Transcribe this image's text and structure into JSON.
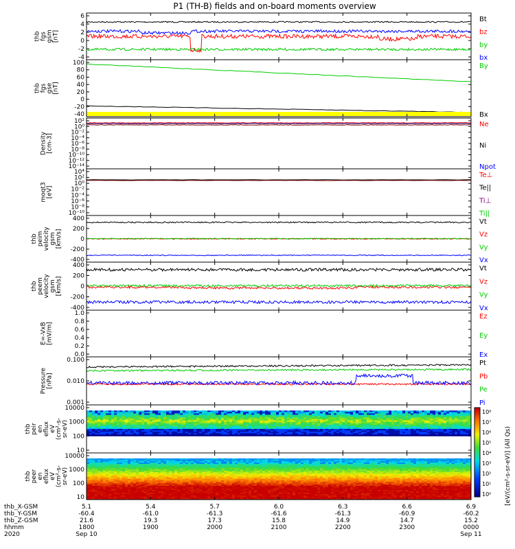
{
  "title": "P1  (TH-B) fields and on-board moments overview",
  "chart_data": [
    {
      "type": "line",
      "ylabel": [
        "thb",
        "fgs",
        "gsm",
        "[nT]"
      ],
      "yticks": [
        "6",
        "4",
        "2",
        "0",
        "-2",
        "-4"
      ],
      "ylim": [
        -5,
        7
      ],
      "series": [
        {
          "name": "Bt",
          "color": "#000000",
          "level": 5.2,
          "noise": 0.3
        },
        {
          "name": "bz",
          "color": "#ff0000",
          "level": 1.0,
          "noise": 1.0
        },
        {
          "name": "by",
          "color": "#00cc00",
          "level": -2.8,
          "noise": 0.6
        },
        {
          "name": "bx",
          "color": "#0000ff",
          "level": 2.5,
          "noise": 0.7
        }
      ]
    },
    {
      "type": "line",
      "ylabel": [
        "thb",
        "fgs",
        "gse",
        "[nT]"
      ],
      "yticks": [
        "100",
        "80",
        "60",
        "40",
        "20",
        "0",
        "-20",
        "-40"
      ],
      "ylim": [
        -55,
        105
      ],
      "series": [
        {
          "name": "By",
          "color": "#00cc00",
          "start": 100,
          "end": 45
        },
        {
          "name": "Bx",
          "color": "#000000",
          "start": -30,
          "end": -50
        }
      ]
    },
    {
      "type": "line",
      "ylabel": [
        "Density",
        "[cm-3]"
      ],
      "yticks": [
        "10²",
        "10⁰",
        "10⁻²",
        "10⁻⁴",
        "10⁻⁶",
        "10⁻⁸",
        "10⁻¹⁰",
        "10⁻¹²",
        "10⁻¹⁴"
      ],
      "series": [
        {
          "name": "Ne",
          "color": "#ff0000"
        },
        {
          "name": "Ni",
          "color": "#000000"
        },
        {
          "name": "Npot",
          "color": "#0000ff"
        }
      ]
    },
    {
      "type": "line",
      "ylabel": [
        "moqt3",
        "[eV]"
      ],
      "yticks": [
        "10⁴",
        "10²",
        "10⁰",
        "10⁻²",
        "10⁻⁴",
        "10⁻⁶",
        "10⁻⁸",
        "10⁻¹⁰"
      ],
      "series": [
        {
          "name": "Te⊥",
          "color": "#ff0000"
        },
        {
          "name": "Te||",
          "color": "#000000"
        },
        {
          "name": "Ti⊥",
          "color": "#800080"
        },
        {
          "name": "Ti||",
          "color": "#00cc00"
        }
      ]
    },
    {
      "type": "line",
      "ylabel": [
        "thb",
        "peim",
        "velocity",
        "gsm",
        "[km/s]"
      ],
      "yticks": [
        "400",
        "200",
        "0",
        "-200",
        "-400"
      ],
      "ylim": [
        -400,
        400
      ],
      "series": [
        {
          "name": "Vt",
          "color": "#000000",
          "level": 320,
          "noise": 8
        },
        {
          "name": "Vz",
          "color": "#ff0000",
          "level": 0,
          "noise": 6
        },
        {
          "name": "Vy",
          "color": "#00cc00",
          "level": 5,
          "noise": 6
        },
        {
          "name": "Vx",
          "color": "#0000ff",
          "level": -320,
          "noise": 6
        }
      ]
    },
    {
      "type": "line",
      "ylabel": [
        "thb",
        "peem",
        "velocity",
        "gsm",
        "[km/s]"
      ],
      "yticks": [
        "400",
        "200",
        "0",
        "-200",
        "-400"
      ],
      "ylim": [
        -400,
        400
      ],
      "series": [
        {
          "name": "Vt",
          "color": "#000000",
          "level": 310,
          "noise": 18
        },
        {
          "name": "Vz",
          "color": "#ff0000",
          "level": -20,
          "noise": 14
        },
        {
          "name": "Vy",
          "color": "#00cc00",
          "level": 10,
          "noise": 14
        },
        {
          "name": "Vx",
          "color": "#0000ff",
          "level": -300,
          "noise": 18
        }
      ]
    },
    {
      "type": "line",
      "ylabel": [
        "E=-VxB",
        "[mV/m]"
      ],
      "yticks": [
        "1.0",
        "0.8",
        "0.6",
        "0.4",
        "0.2",
        "0.0"
      ],
      "ylim": [
        0,
        1
      ],
      "series": [
        {
          "name": "Ez",
          "color": "#ff0000"
        },
        {
          "name": "Ey",
          "color": "#00cc00"
        },
        {
          "name": "Ex",
          "color": "#0000ff"
        }
      ]
    },
    {
      "type": "line",
      "ylabel": [
        "Pressure",
        "[nPa]"
      ],
      "yticks": [
        "0.100",
        "0.010",
        "0.001"
      ],
      "series": [
        {
          "name": "Pt",
          "color": "#000000",
          "level": 0.045
        },
        {
          "name": "Pb",
          "color": "#ff0000",
          "level": 0.007
        },
        {
          "name": "Pe",
          "color": "#00cc00",
          "level": 0.03
        },
        {
          "name": "Pi",
          "color": "#0000ff",
          "level": 0.008
        }
      ]
    },
    {
      "type": "heatmap",
      "ylabel": [
        "thb",
        "peir",
        "en",
        "eflux",
        "eV",
        "(cm²-s-",
        "sr-eV)"
      ],
      "yticks": [
        "10000",
        "1000",
        "100",
        "10"
      ]
    },
    {
      "type": "heatmap",
      "ylabel": [
        "thb",
        "peer",
        "en",
        "eflux",
        "eV",
        "(cm²-s-",
        "sr-eV)"
      ],
      "yticks": [
        "10000",
        "1000",
        "100",
        "10"
      ]
    }
  ],
  "colorbar": {
    "label": "[eV/(cm²-s-sr-eV)] (All Qs)",
    "ticks": [
      "10⁸",
      "10⁷",
      "10⁶",
      "10⁵",
      "10⁴",
      "10³",
      "10²",
      "10¹",
      "10⁰"
    ]
  },
  "xaxis": {
    "rows": [
      {
        "label": "thb_X-GSM",
        "values": [
          "5.1",
          "5.4",
          "5.7",
          "6.0",
          "6.3",
          "6.6",
          "6.9"
        ]
      },
      {
        "label": "thb_Y-GSM",
        "values": [
          "-60.4",
          "-61.0",
          "-61.3",
          "-61.6",
          "-61.3",
          "-60.9",
          "-60.2"
        ]
      },
      {
        "label": "thb_Z-GSM",
        "values": [
          "21.6",
          "19.3",
          "17.3",
          "15.8",
          "14.9",
          "14.7",
          "15.2"
        ]
      },
      {
        "label": "hhmm",
        "values": [
          "1800",
          "1900",
          "2000",
          "2100",
          "2200",
          "2300",
          "0000"
        ]
      },
      {
        "label": "2020",
        "values": [
          "Sep 10",
          "",
          "",
          "",
          "",
          "",
          "Sep 11"
        ]
      }
    ]
  }
}
